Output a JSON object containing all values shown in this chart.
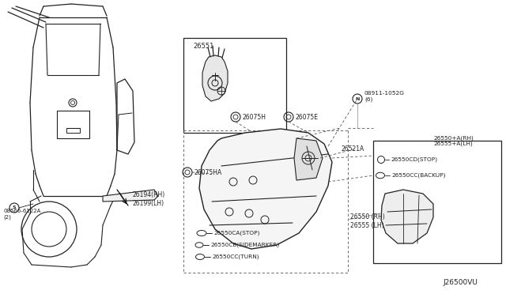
{
  "bg_color": "#ffffff",
  "line_color": "#222222",
  "text_color": "#222222",
  "diagram_id": "J26500VU",
  "parts": {
    "screw_bottom_left": "08566-6122A\n(2)",
    "reflector_rh": "26194(RH)\n26199(LH)",
    "socket_26551": "26551",
    "socket_26075H": "26075H",
    "socket_26075E": "26075E",
    "nut_label": "08911-1052G\n(6)",
    "bracket_26521A": "26521A",
    "lamp_rh": "26550 (RH)\n26555 (LH)",
    "lamp_assy_rh": "26550+A(RH)\n26555+A(LH)",
    "bulb_stop": "26550CD(STOP)",
    "bulb_backup": "26550CC(BACKUP)",
    "socket_26075HA": "26075HA",
    "bulb_ca_stop": "26550CA(STOP)",
    "bulb_cb_sidemarker": "26550CB(SIDEMARKER)",
    "bulb_cc_turn": "26550CC(TURN)"
  }
}
